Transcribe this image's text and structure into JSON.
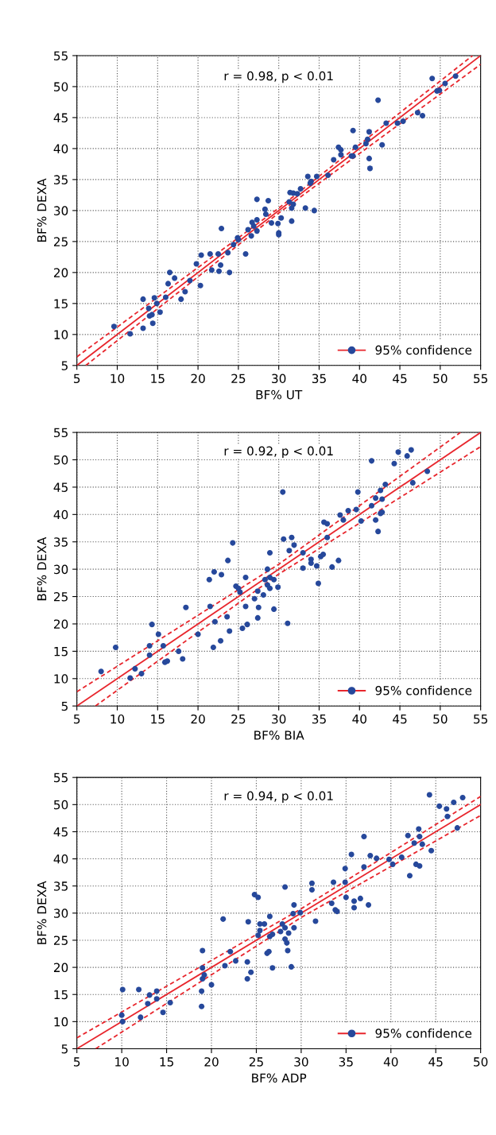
{
  "chart_data": [
    {
      "type": "scatter",
      "xlabel": "BF% UT",
      "ylabel": "BF% DEXA",
      "annotations": [
        "r = 0.98, p < 0.01"
      ],
      "xlim": [
        5,
        55
      ],
      "ylim": [
        5,
        55
      ],
      "xticks": [
        5,
        10,
        15,
        20,
        25,
        30,
        35,
        40,
        45,
        50,
        55
      ],
      "yticks": [
        5,
        10,
        15,
        20,
        25,
        30,
        35,
        40,
        45,
        50,
        55
      ],
      "grid": true,
      "legend": "bottom right",
      "series": [
        {
          "color": "#26489b",
          "marker": "circle",
          "x": [
            9.6,
            11.6,
            13.2,
            13.2,
            13.9,
            14.0,
            14.3,
            14.6,
            14.4,
            14.9,
            15.3,
            16.0,
            16.3,
            16.5,
            17.1,
            17.9,
            18.4,
            19.0,
            19.8,
            20.3,
            20.4,
            21.5,
            21.7,
            22.5,
            22.6,
            22.8,
            22.9,
            23.7,
            23.9,
            24.4,
            24.9,
            25.0,
            25.9,
            26.2,
            26.6,
            26.7,
            26.9,
            27.3,
            27.3,
            27.3,
            28.3,
            28.4,
            28.7,
            29.1,
            29.9,
            30.0,
            30.0,
            30.3,
            31.4,
            31.8,
            31.3,
            31.8,
            31.6,
            31.6,
            32.3,
            32.7,
            33.3,
            33.6,
            33.9,
            34.0,
            34.4,
            34.7,
            36.1,
            36.8,
            37.4,
            37.7,
            37.7,
            39.0,
            39.2,
            39.2,
            39.5,
            40.8,
            41.0,
            41.2,
            41.2,
            41.3,
            42.3,
            42.8,
            43.3,
            44.7,
            45.4,
            47.2,
            47.8,
            49.0,
            49.6,
            49.9,
            50.6,
            51.9
          ],
          "values": [
            11.3,
            10.1,
            15.7,
            11.0,
            14.2,
            13.0,
            13.2,
            15.9,
            11.8,
            15.0,
            13.6,
            16.0,
            18.2,
            20.0,
            19.1,
            15.7,
            16.9,
            18.7,
            21.4,
            17.9,
            22.8,
            23.0,
            20.4,
            23.0,
            20.2,
            21.2,
            27.1,
            23.2,
            20.0,
            24.5,
            25.6,
            25.3,
            23.0,
            26.9,
            25.9,
            28.1,
            27.5,
            26.7,
            28.5,
            31.8,
            30.2,
            29.4,
            31.6,
            28.0,
            27.9,
            26.4,
            26.1,
            28.8,
            32.9,
            32.8,
            31.4,
            31.0,
            30.4,
            28.3,
            32.7,
            33.5,
            30.4,
            35.5,
            34.4,
            34.7,
            30.0,
            35.5,
            35.7,
            38.2,
            40.2,
            39.8,
            39.0,
            38.8,
            38.8,
            42.9,
            40.2,
            40.8,
            41.5,
            42.7,
            38.4,
            36.8,
            47.8,
            40.6,
            44.1,
            44.1,
            44.4,
            45.8,
            45.3,
            51.3,
            49.3,
            49.4,
            50.5,
            51.7
          ]
        },
        {
          "type": "line",
          "name": "95% confidence",
          "color": "#e8262d",
          "line_style": "solid",
          "x": [
            5,
            55
          ],
          "values": [
            5,
            55
          ]
        },
        {
          "type": "line",
          "color": "#e8262d",
          "line_style": "dashed",
          "x": [
            5,
            30,
            54.0
          ],
          "values": [
            6.4,
            30.4,
            55
          ]
        },
        {
          "type": "line",
          "color": "#e8262d",
          "line_style": "dashed",
          "x": [
            6.1,
            30,
            55
          ],
          "values": [
            5,
            29.6,
            53.6
          ]
        }
      ]
    },
    {
      "type": "scatter",
      "xlabel": "BF% BIA",
      "ylabel": "BF% DEXA",
      "annotations": [
        "r = 0.92, p < 0.01"
      ],
      "xlim": [
        5,
        55
      ],
      "ylim": [
        5,
        55
      ],
      "xticks": [
        5,
        10,
        15,
        20,
        25,
        30,
        35,
        40,
        45,
        50,
        55
      ],
      "yticks": [
        5,
        10,
        15,
        20,
        25,
        30,
        35,
        40,
        45,
        50,
        55
      ],
      "grid": true,
      "legend": "bottom right",
      "series": [
        {
          "color": "#26489b",
          "marker": "circle",
          "x": [
            8.0,
            9.8,
            11.6,
            12.2,
            13.0,
            14.0,
            14.0,
            14.3,
            15.1,
            15.7,
            15.9,
            16.2,
            17.6,
            18.1,
            18.5,
            20.0,
            21.4,
            21.5,
            21.9,
            22.0,
            22.1,
            22.8,
            22.9,
            23.6,
            23.7,
            23.9,
            24.3,
            24.7,
            25.0,
            25.2,
            25.5,
            25.9,
            25.9,
            26.1,
            27.0,
            27.4,
            27.4,
            27.5,
            28.1,
            28.3,
            28.6,
            28.6,
            28.9,
            28.9,
            28.9,
            29.4,
            29.4,
            29.9,
            30.5,
            30.6,
            31.1,
            31.3,
            31.6,
            31.9,
            33.0,
            33.0,
            34.0,
            34.0,
            34.7,
            34.9,
            35.2,
            35.5,
            35.6,
            36.0,
            36.0,
            36.6,
            37.4,
            37.6,
            38.0,
            38.6,
            39.6,
            39.8,
            40.2,
            41.5,
            41.5,
            42.0,
            42.0,
            42.3,
            42.6,
            42.6,
            42.8,
            42.8,
            43.2,
            44.3,
            44.8,
            45.9,
            46.4,
            46.6,
            48.4
          ],
          "values": [
            11.3,
            15.7,
            10.1,
            11.8,
            10.9,
            16.0,
            14.3,
            19.9,
            18.1,
            16.0,
            13.0,
            13.2,
            15.0,
            13.6,
            23.0,
            18.1,
            28.1,
            23.2,
            15.7,
            29.5,
            20.4,
            16.9,
            29.0,
            21.3,
            31.6,
            18.7,
            34.8,
            26.9,
            26.5,
            25.8,
            19.2,
            28.5,
            23.2,
            19.9,
            24.6,
            26.0,
            21.1,
            23.0,
            25.3,
            28.1,
            30.0,
            27.1,
            26.5,
            33.0,
            28.5,
            28.1,
            22.7,
            26.7,
            44.1,
            35.5,
            20.1,
            33.4,
            35.8,
            34.4,
            33.0,
            30.2,
            31.8,
            31.1,
            30.6,
            27.4,
            32.3,
            32.7,
            38.6,
            38.3,
            35.8,
            30.4,
            31.6,
            39.9,
            39.0,
            40.7,
            40.9,
            44.1,
            38.8,
            49.8,
            41.6,
            43.0,
            39.0,
            36.9,
            44.4,
            40.2,
            42.8,
            40.4,
            45.5,
            49.3,
            51.4,
            50.7,
            51.8,
            45.8,
            47.9
          ]
        },
        {
          "type": "line",
          "name": "95% confidence",
          "color": "#e8262d",
          "line_style": "solid",
          "x": [
            5,
            55
          ],
          "values": [
            5,
            55
          ]
        },
        {
          "type": "line",
          "color": "#e8262d",
          "line_style": "dashed",
          "x": [
            5,
            30,
            52.5
          ],
          "values": [
            7.6,
            30.9,
            55
          ]
        },
        {
          "type": "line",
          "color": "#e8262d",
          "line_style": "dashed",
          "x": [
            7.3,
            30,
            55
          ],
          "values": [
            5,
            29.1,
            52.4
          ]
        }
      ]
    },
    {
      "type": "scatter",
      "xlabel": "BF% ADP",
      "ylabel": "BF% DEXA",
      "annotations": [
        "r = 0.94, p < 0.01"
      ],
      "xlim": [
        5,
        50
      ],
      "ylim": [
        5,
        55
      ],
      "xticks": [
        5,
        10,
        15,
        20,
        25,
        30,
        35,
        40,
        45,
        50
      ],
      "yticks": [
        5,
        10,
        15,
        20,
        25,
        30,
        35,
        40,
        45,
        50,
        55
      ],
      "grid": true,
      "legend": "bottom right",
      "series": [
        {
          "color": "#26489b",
          "marker": "circle",
          "x": [
            10.0,
            10.1,
            10.1,
            11.9,
            12.1,
            12.9,
            13.1,
            13.9,
            13.9,
            14.6,
            15.4,
            18.9,
            18.9,
            19.0,
            19.0,
            19.2,
            19.0,
            20.0,
            21.3,
            21.5,
            22.1,
            22.7,
            24.0,
            24.0,
            24.1,
            24.4,
            24.8,
            25.2,
            25.4,
            25.4,
            25.2,
            25.9,
            26.2,
            26.4,
            26.5,
            26.5,
            26.8,
            26.8,
            27.7,
            27.9,
            28.2,
            28.2,
            28.2,
            28.4,
            28.5,
            28.6,
            28.9,
            29.1,
            29.2,
            29.2,
            29.9,
            31.6,
            31.2,
            31.2,
            33.4,
            33.6,
            33.8,
            34.0,
            34.9,
            34.9,
            35.0,
            35.6,
            35.9,
            35.9,
            36.6,
            37.0,
            37.0,
            37.5,
            37.7,
            38.4,
            39.8,
            40.2,
            41.2,
            41.9,
            42.1,
            42.6,
            42.8,
            43.1,
            43.2,
            43.2,
            43.5,
            44.5,
            44.3,
            45.4,
            46.2,
            46.3,
            47.0,
            47.4,
            48.0
          ],
          "values": [
            11.2,
            10.0,
            15.9,
            15.9,
            10.8,
            13.3,
            14.9,
            14.2,
            15.6,
            11.7,
            13.5,
            12.8,
            15.6,
            17.9,
            19.9,
            18.6,
            23.1,
            16.8,
            28.9,
            20.3,
            22.9,
            21.2,
            17.9,
            21.0,
            28.4,
            19.1,
            33.4,
            32.9,
            28.0,
            26.8,
            25.9,
            28.0,
            22.6,
            22.9,
            29.4,
            25.7,
            26.1,
            19.9,
            26.6,
            28.0,
            27.3,
            25.2,
            34.8,
            24.5,
            23.1,
            26.3,
            20.1,
            29.9,
            31.5,
            27.3,
            30.1,
            28.5,
            35.5,
            34.3,
            31.8,
            35.7,
            30.6,
            30.3,
            38.2,
            35.7,
            32.9,
            40.8,
            32.2,
            31.0,
            32.7,
            44.1,
            38.5,
            31.5,
            40.6,
            40.1,
            39.9,
            39.0,
            40.3,
            44.3,
            36.9,
            42.9,
            39.0,
            45.5,
            38.7,
            44.1,
            42.7,
            41.5,
            51.8,
            49.7,
            49.2,
            47.8,
            50.4,
            45.7,
            51.3
          ]
        },
        {
          "type": "line",
          "name": "95% confidence",
          "color": "#e8262d",
          "line_style": "solid",
          "x": [
            5,
            50
          ],
          "values": [
            5,
            50
          ]
        },
        {
          "type": "line",
          "color": "#e8262d",
          "line_style": "dashed",
          "x": [
            5,
            30,
            50
          ],
          "values": [
            7.0,
            30.8,
            51.5
          ]
        },
        {
          "type": "line",
          "color": "#e8262d",
          "line_style": "dashed",
          "x": [
            7.1,
            30,
            50
          ],
          "values": [
            5,
            29.2,
            48.0
          ]
        }
      ]
    }
  ]
}
